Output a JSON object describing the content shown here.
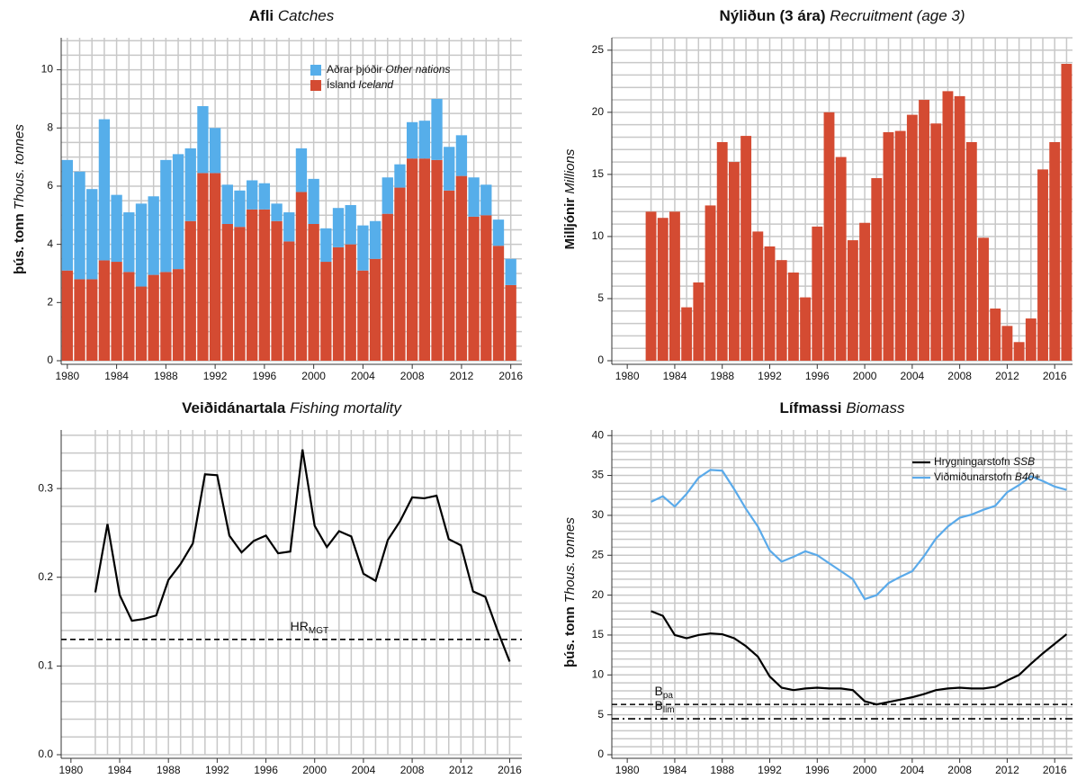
{
  "chart_data": [
    {
      "type": "bar",
      "title": "Afli",
      "title_en": "Catches",
      "ylabel": "þús. tonn",
      "ylabel_en": "Thous. tonnes",
      "x": [
        1980,
        1981,
        1982,
        1983,
        1984,
        1985,
        1986,
        1987,
        1988,
        1989,
        1990,
        1991,
        1992,
        1993,
        1994,
        1995,
        1996,
        1997,
        1998,
        1999,
        2000,
        2001,
        2002,
        2003,
        2004,
        2005,
        2006,
        2007,
        2008,
        2009,
        2010,
        2011,
        2012,
        2013,
        2014,
        2015,
        2016
      ],
      "series": [
        {
          "name": "Ísland",
          "name_en": "Iceland",
          "color": "#d44b32",
          "values": [
            3.1,
            2.8,
            2.8,
            3.45,
            3.4,
            3.05,
            2.55,
            2.95,
            3.05,
            3.15,
            4.8,
            6.45,
            6.45,
            4.7,
            4.6,
            5.2,
            5.2,
            4.8,
            4.1,
            5.8,
            4.7,
            3.4,
            3.9,
            4.0,
            3.1,
            3.5,
            5.05,
            5.95,
            6.95,
            6.95,
            6.9,
            5.85,
            6.35,
            4.95,
            5.0,
            3.95,
            2.6
          ]
        },
        {
          "name": "Aðrar þjóðir",
          "name_en": "Other nations",
          "color": "#56aeea",
          "values": [
            3.8,
            3.7,
            3.1,
            4.85,
            2.3,
            2.05,
            2.85,
            2.7,
            3.85,
            3.95,
            2.5,
            2.3,
            1.55,
            1.35,
            1.25,
            1.0,
            0.9,
            0.6,
            1.0,
            1.5,
            1.55,
            1.15,
            1.35,
            1.35,
            1.55,
            1.3,
            1.25,
            0.8,
            1.25,
            1.3,
            2.1,
            1.5,
            1.4,
            1.35,
            1.05,
            0.9,
            0.9
          ]
        }
      ],
      "xlim": [
        1979.5,
        2016.9
      ],
      "xticks": [
        1980,
        1984,
        1988,
        1992,
        1996,
        2000,
        2004,
        2008,
        2012,
        2016
      ],
      "ylim": [
        0,
        11.1
      ],
      "yticks": [
        0,
        2,
        4,
        6,
        8,
        10
      ],
      "ygrid": [
        0,
        0.5,
        1,
        1.5,
        2,
        2.5,
        3,
        3.5,
        4,
        4.5,
        5,
        5.5,
        6,
        6.5,
        7,
        7.5,
        8,
        8.5,
        9,
        9.5,
        10,
        10.5,
        11
      ],
      "legend": "top-right",
      "stacked": true
    },
    {
      "type": "bar",
      "title": "Nýliðun (3 ára)",
      "title_en": "Recruitment (age 3)",
      "ylabel": "Milljónir",
      "ylabel_en": "Millions",
      "x": [
        1982,
        1983,
        1984,
        1985,
        1986,
        1987,
        1988,
        1989,
        1990,
        1991,
        1992,
        1993,
        1994,
        1995,
        1996,
        1997,
        1998,
        1999,
        2000,
        2001,
        2002,
        2003,
        2004,
        2005,
        2006,
        2007,
        2008,
        2009,
        2010,
        2011,
        2012,
        2013,
        2014,
        2015,
        2016,
        2017
      ],
      "series": [
        {
          "color": "#d44b32",
          "values": [
            12.0,
            11.5,
            12.0,
            4.3,
            6.3,
            12.5,
            17.6,
            16.0,
            18.1,
            10.4,
            9.2,
            8.1,
            7.1,
            5.1,
            10.8,
            20.0,
            16.4,
            9.7,
            11.1,
            14.7,
            18.4,
            18.5,
            19.8,
            21.0,
            19.1,
            21.7,
            21.3,
            17.6,
            9.9,
            4.2,
            2.8,
            1.5,
            3.4,
            15.4,
            17.6,
            23.9
          ]
        }
      ],
      "xlim": [
        1978.7,
        2017.5
      ],
      "xticks": [
        1980,
        1984,
        1988,
        1992,
        1996,
        2000,
        2004,
        2008,
        2012,
        2016
      ],
      "ylim": [
        0,
        26
      ],
      "yticks": [
        0,
        5,
        10,
        15,
        20,
        25
      ],
      "ygrid": [
        0,
        1,
        2,
        3,
        4,
        5,
        6,
        7,
        8,
        9,
        10,
        11,
        12,
        13,
        14,
        15,
        16,
        17,
        18,
        19,
        20,
        21,
        22,
        23,
        24,
        25,
        26
      ]
    },
    {
      "type": "line",
      "title": "Veiðidánartala",
      "title_en": "Fishing mortality",
      "x": [
        1982,
        1983,
        1984,
        1985,
        1986,
        1987,
        1988,
        1989,
        1990,
        1991,
        1992,
        1993,
        1994,
        1995,
        1996,
        1997,
        1998,
        1999,
        2000,
        2001,
        2002,
        2003,
        2004,
        2005,
        2006,
        2007,
        2008,
        2009,
        2010,
        2011,
        2012,
        2013,
        2014,
        2015,
        2016
      ],
      "series": [
        {
          "color": "#000000",
          "values": [
            0.183,
            0.26,
            0.18,
            0.151,
            0.153,
            0.157,
            0.197,
            0.215,
            0.238,
            0.316,
            0.315,
            0.247,
            0.228,
            0.241,
            0.247,
            0.227,
            0.229,
            0.344,
            0.258,
            0.234,
            0.252,
            0.246,
            0.204,
            0.196,
            0.242,
            0.263,
            0.29,
            0.289,
            0.292,
            0.243,
            0.236,
            0.184,
            0.178,
            0.14,
            0.105
          ]
        }
      ],
      "hlines": [
        {
          "value": 0.13,
          "label": "HR",
          "sub": "MGT",
          "at": 1998,
          "dash": "dashed"
        }
      ],
      "xlim": [
        1979.2,
        2017
      ],
      "xticks": [
        1980,
        1984,
        1988,
        1992,
        1996,
        2000,
        2004,
        2008,
        2012,
        2016
      ],
      "ylim": [
        0,
        0.366
      ],
      "yticks": [
        {
          "value": 0,
          "label": "0.0"
        },
        0.1,
        0.2,
        0.3
      ],
      "ygrid": [
        0,
        0.02,
        0.04,
        0.06,
        0.08,
        0.1,
        0.12,
        0.14,
        0.16,
        0.18,
        0.2,
        0.22,
        0.24,
        0.26,
        0.28,
        0.3,
        0.32,
        0.34,
        0.36
      ]
    },
    {
      "type": "line",
      "title": "Lífmassi",
      "title_en": "Biomass",
      "ylabel": "þús. tonn",
      "ylabel_en": "Thous. tonnes",
      "x": [
        1982,
        1983,
        1984,
        1985,
        1986,
        1987,
        1988,
        1989,
        1990,
        1991,
        1992,
        1993,
        1994,
        1995,
        1996,
        1997,
        1998,
        1999,
        2000,
        2001,
        2002,
        2003,
        2004,
        2005,
        2006,
        2007,
        2008,
        2009,
        2010,
        2011,
        2012,
        2013,
        2014,
        2015,
        2016,
        2017
      ],
      "series": [
        {
          "name": "Hrygningarstofn",
          "name_en": "SSB",
          "color": "#000000",
          "values": [
            18.0,
            17.4,
            15.0,
            14.6,
            15.0,
            15.2,
            15.1,
            14.6,
            13.6,
            12.3,
            9.8,
            8.4,
            8.1,
            8.3,
            8.4,
            8.3,
            8.3,
            8.1,
            6.7,
            6.3,
            6.6,
            6.9,
            7.2,
            7.6,
            8.1,
            8.3,
            8.4,
            8.3,
            8.3,
            8.5,
            9.3,
            10.0,
            11.4,
            12.7,
            13.9,
            15.1
          ]
        },
        {
          "name": "Viðmiðunarstofn",
          "name_en": "B40+",
          "color": "#5aaaea",
          "values": [
            31.7,
            32.4,
            31.1,
            32.7,
            34.7,
            35.7,
            35.6,
            33.3,
            30.8,
            28.6,
            25.6,
            24.2,
            24.8,
            25.5,
            25.0,
            24.0,
            23.0,
            22.0,
            19.5,
            20.0,
            21.5,
            22.3,
            23.0,
            24.9,
            27.1,
            28.6,
            29.7,
            30.1,
            30.7,
            31.2,
            32.9,
            33.8,
            34.9,
            34.3,
            33.6,
            33.2
          ]
        }
      ],
      "hlines": [
        {
          "value": 6.3,
          "label": "B",
          "sub": "pa",
          "at": 1982.3,
          "dash": "dashed"
        },
        {
          "value": 4.5,
          "label": "B",
          "sub": "lim",
          "at": 1982.3,
          "dash": "dashdot"
        }
      ],
      "xlim": [
        1978.7,
        2017.5
      ],
      "xticks": [
        1980,
        1984,
        1988,
        1992,
        1996,
        2000,
        2004,
        2008,
        2012,
        2016
      ],
      "ylim": [
        0,
        40.7
      ],
      "yticks": [
        0,
        5,
        10,
        15,
        20,
        25,
        30,
        35,
        40
      ],
      "ygrid": [
        0,
        1,
        2,
        3,
        4,
        5,
        6,
        7,
        8,
        9,
        10,
        11,
        12,
        13,
        14,
        15,
        16,
        17,
        18,
        19,
        20,
        21,
        22,
        23,
        24,
        25,
        26,
        27,
        28,
        29,
        30,
        31,
        32,
        33,
        34,
        35,
        36,
        37,
        38,
        39,
        40
      ],
      "legend": "top-right"
    }
  ]
}
